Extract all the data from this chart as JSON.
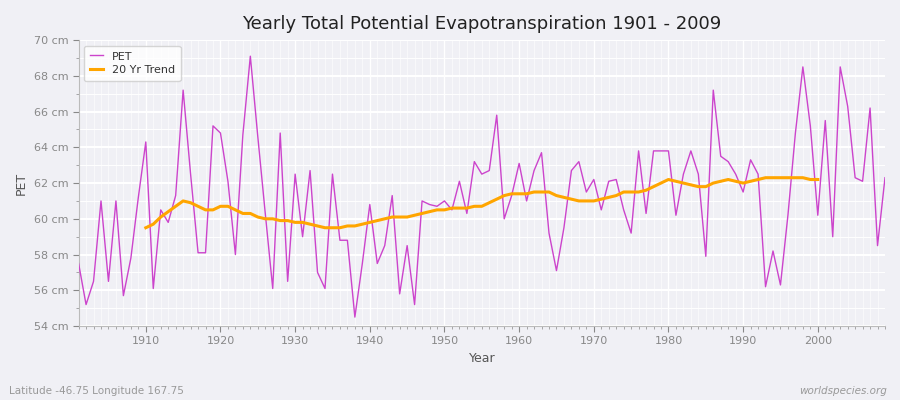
{
  "title": "Yearly Total Potential Evapotranspiration 1901 - 2009",
  "xlabel": "Year",
  "ylabel": "PET",
  "lat_lon_label": "Latitude -46.75 Longitude 167.75",
  "watermark": "worldspecies.org",
  "ylim": [
    54,
    70
  ],
  "ytick_labels": [
    "54 cm",
    "56 cm",
    "58 cm",
    "60 cm",
    "62 cm",
    "64 cm",
    "66 cm",
    "68 cm",
    "70 cm"
  ],
  "ytick_values": [
    54,
    56,
    58,
    60,
    62,
    64,
    66,
    68,
    70
  ],
  "pet_color": "#CC44CC",
  "trend_color": "#FFA500",
  "bg_color": "#F0F0F5",
  "plot_bg": "#F0F0F5",
  "grid_color": "#FFFFFF",
  "years": [
    1901,
    1902,
    1903,
    1904,
    1905,
    1906,
    1907,
    1908,
    1909,
    1910,
    1911,
    1912,
    1913,
    1914,
    1915,
    1916,
    1917,
    1918,
    1919,
    1920,
    1921,
    1922,
    1923,
    1924,
    1925,
    1926,
    1927,
    1928,
    1929,
    1930,
    1931,
    1932,
    1933,
    1934,
    1935,
    1936,
    1937,
    1938,
    1939,
    1940,
    1941,
    1942,
    1943,
    1944,
    1945,
    1946,
    1947,
    1948,
    1949,
    1950,
    1951,
    1952,
    1953,
    1954,
    1955,
    1956,
    1957,
    1958,
    1959,
    1960,
    1961,
    1962,
    1963,
    1964,
    1965,
    1966,
    1967,
    1968,
    1969,
    1970,
    1971,
    1972,
    1973,
    1974,
    1975,
    1976,
    1977,
    1978,
    1979,
    1980,
    1981,
    1982,
    1983,
    1984,
    1985,
    1986,
    1987,
    1988,
    1989,
    1990,
    1991,
    1992,
    1993,
    1994,
    1995,
    1996,
    1997,
    1998,
    1999,
    2000,
    2001,
    2002,
    2003,
    2004,
    2005,
    2006,
    2007,
    2008,
    2009
  ],
  "pet_values": [
    57.5,
    55.2,
    56.5,
    61.0,
    56.5,
    61.0,
    55.7,
    57.8,
    61.2,
    64.3,
    56.1,
    60.5,
    59.8,
    61.3,
    67.2,
    62.5,
    58.1,
    58.1,
    65.2,
    64.8,
    62.1,
    58.0,
    64.7,
    69.1,
    64.6,
    60.3,
    56.1,
    64.8,
    56.5,
    62.5,
    59.0,
    62.7,
    57.0,
    56.1,
    62.5,
    58.8,
    58.8,
    54.5,
    57.5,
    60.8,
    57.5,
    58.5,
    61.3,
    55.8,
    58.5,
    55.2,
    61.0,
    60.8,
    60.7,
    61.0,
    60.5,
    62.1,
    60.3,
    63.2,
    62.5,
    62.7,
    65.8,
    60.0,
    61.3,
    63.1,
    61.0,
    62.7,
    63.7,
    59.2,
    57.1,
    59.5,
    62.7,
    63.2,
    61.5,
    62.2,
    60.5,
    62.1,
    62.2,
    60.5,
    59.2,
    63.8,
    60.3,
    63.8,
    63.8,
    63.8,
    60.2,
    62.5,
    63.8,
    62.5,
    57.9,
    67.2,
    63.5,
    63.2,
    62.5,
    61.5,
    63.3,
    62.5,
    56.2,
    58.2,
    56.3,
    60.2,
    64.8,
    68.5,
    65.2,
    60.2,
    65.5,
    59.0,
    68.5,
    66.3,
    62.3,
    62.1,
    66.2,
    58.5,
    62.3
  ],
  "trend_years": [
    1910,
    1911,
    1912,
    1913,
    1914,
    1915,
    1916,
    1917,
    1918,
    1919,
    1920,
    1921,
    1922,
    1923,
    1924,
    1925,
    1926,
    1927,
    1928,
    1929,
    1930,
    1931,
    1932,
    1933,
    1934,
    1935,
    1936,
    1937,
    1938,
    1939,
    1940,
    1941,
    1942,
    1943,
    1944,
    1945,
    1946,
    1947,
    1948,
    1949,
    1950,
    1951,
    1952,
    1953,
    1954,
    1955,
    1956,
    1957,
    1958,
    1959,
    1960,
    1961,
    1962,
    1963,
    1964,
    1965,
    1966,
    1967,
    1968,
    1969,
    1970,
    1971,
    1972,
    1973,
    1974,
    1975,
    1976,
    1977,
    1978,
    1979,
    1980,
    1981,
    1982,
    1983,
    1984,
    1985,
    1986,
    1987,
    1988,
    1989,
    1990,
    1991,
    1992,
    1993,
    1994,
    1995,
    1996,
    1997,
    1998,
    1999,
    2000
  ],
  "trend_values": [
    59.5,
    59.7,
    60.1,
    60.4,
    60.7,
    61.0,
    60.9,
    60.7,
    60.5,
    60.5,
    60.7,
    60.7,
    60.5,
    60.3,
    60.3,
    60.1,
    60.0,
    60.0,
    59.9,
    59.9,
    59.8,
    59.8,
    59.7,
    59.6,
    59.5,
    59.5,
    59.5,
    59.6,
    59.6,
    59.7,
    59.8,
    59.9,
    60.0,
    60.1,
    60.1,
    60.1,
    60.2,
    60.3,
    60.4,
    60.5,
    60.5,
    60.6,
    60.6,
    60.6,
    60.7,
    60.7,
    60.9,
    61.1,
    61.3,
    61.4,
    61.4,
    61.4,
    61.5,
    61.5,
    61.5,
    61.3,
    61.2,
    61.1,
    61.0,
    61.0,
    61.0,
    61.1,
    61.2,
    61.3,
    61.5,
    61.5,
    61.5,
    61.6,
    61.8,
    62.0,
    62.2,
    62.1,
    62.0,
    61.9,
    61.8,
    61.8,
    62.0,
    62.1,
    62.2,
    62.1,
    62.0,
    62.1,
    62.2,
    62.3,
    62.3,
    62.3,
    62.3,
    62.3,
    62.3,
    62.2,
    62.2
  ],
  "xtick_positions": [
    1910,
    1920,
    1930,
    1940,
    1950,
    1960,
    1970,
    1980,
    1990,
    2000
  ]
}
